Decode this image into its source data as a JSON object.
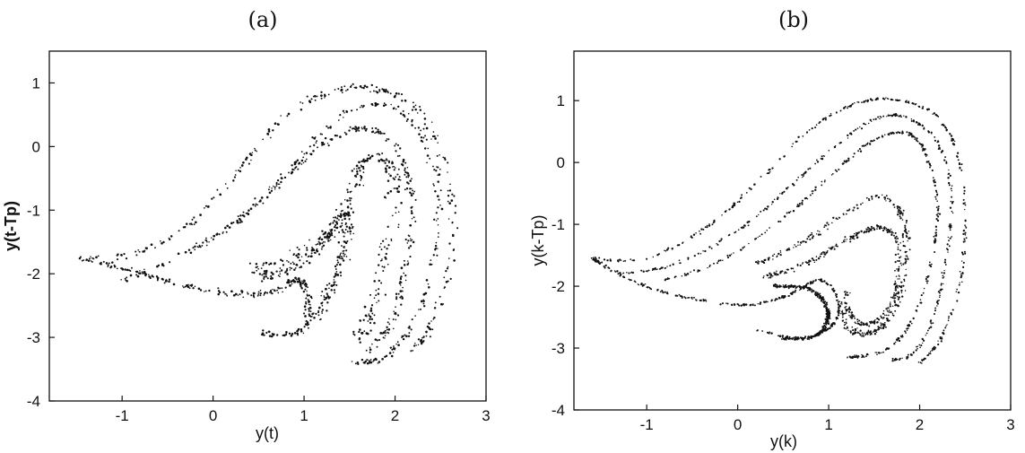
{
  "chart_data": [
    {
      "type": "scatter",
      "panel_label": "(a)",
      "xlabel": "y(t)",
      "ylabel": "y(t-Tp)",
      "xlim": [
        -1.8,
        3.0
      ],
      "ylim": [
        -4.0,
        1.5
      ],
      "xticks": [
        -1,
        0,
        1,
        2,
        3
      ],
      "yticks": [
        -4,
        -3,
        -2,
        -1,
        0,
        1
      ],
      "xtick_labels": [
        "-1",
        "0",
        "1",
        "2",
        "3"
      ],
      "ytick_labels": [
        "-4",
        "-3",
        "-2",
        "-1",
        "0",
        "1"
      ],
      "grid": false,
      "marker_color": "#111111",
      "marker_style": "dots (noisy measured attractor)",
      "strands": [
        {
          "width": 0.12,
          "points": [
            [
              -1.45,
              -1.75
            ],
            [
              -0.9,
              -1.95
            ],
            [
              -0.4,
              -2.15
            ],
            [
              0.1,
              -2.3
            ],
            [
              0.6,
              -2.3
            ],
            [
              0.95,
              -2.1
            ],
            [
              1.05,
              -2.5
            ],
            [
              1.0,
              -2.9
            ],
            [
              0.5,
              -2.95
            ]
          ]
        },
        {
          "width": 0.14,
          "points": [
            [
              -1.45,
              -1.78
            ],
            [
              -0.8,
              -1.65
            ],
            [
              -0.2,
              -1.15
            ],
            [
              0.3,
              -0.35
            ],
            [
              0.8,
              0.5
            ],
            [
              1.3,
              0.85
            ],
            [
              1.7,
              0.92
            ],
            [
              2.15,
              0.7
            ],
            [
              2.45,
              0.1
            ],
            [
              2.6,
              -0.8
            ],
            [
              2.6,
              -1.9
            ],
            [
              2.4,
              -2.8
            ],
            [
              2.2,
              -3.2
            ]
          ]
        },
        {
          "width": 0.12,
          "points": [
            [
              -1.0,
              -2.1
            ],
            [
              -0.4,
              -1.75
            ],
            [
              0.2,
              -1.25
            ],
            [
              0.7,
              -0.6
            ],
            [
              1.1,
              0.05
            ],
            [
              1.5,
              0.55
            ],
            [
              1.9,
              0.65
            ],
            [
              2.25,
              0.3
            ],
            [
              2.45,
              -0.5
            ],
            [
              2.45,
              -1.5
            ],
            [
              2.3,
              -2.5
            ],
            [
              2.05,
              -3.1
            ],
            [
              1.8,
              -3.35
            ],
            [
              1.55,
              -3.4
            ]
          ]
        },
        {
          "width": 0.12,
          "points": [
            [
              -0.2,
              -1.6
            ],
            [
              0.4,
              -1.0
            ],
            [
              1.0,
              -0.2
            ],
            [
              1.5,
              0.25
            ],
            [
              1.85,
              0.2
            ],
            [
              2.1,
              -0.3
            ],
            [
              2.2,
              -1.0
            ],
            [
              2.1,
              -2.0
            ],
            [
              1.95,
              -2.8
            ],
            [
              1.7,
              -3.25
            ]
          ]
        },
        {
          "width": 0.22,
          "points": [
            [
              0.4,
              -1.95
            ],
            [
              0.9,
              -1.7
            ],
            [
              1.35,
              -1.2
            ],
            [
              1.55,
              -0.6
            ],
            [
              1.7,
              -0.2
            ],
            [
              1.95,
              -0.3
            ],
            [
              2.0,
              -0.9
            ],
            [
              1.9,
              -1.7
            ],
            [
              1.75,
              -2.5
            ],
            [
              1.6,
              -3.0
            ]
          ]
        },
        {
          "width": 0.18,
          "points": [
            [
              0.55,
              -2.05
            ],
            [
              0.95,
              -1.85
            ],
            [
              1.25,
              -1.45
            ],
            [
              1.45,
              -1.05
            ],
            [
              1.45,
              -1.6
            ],
            [
              1.3,
              -2.2
            ],
            [
              1.15,
              -2.7
            ]
          ]
        }
      ]
    },
    {
      "type": "scatter",
      "panel_label": "(b)",
      "xlabel": "y(k)",
      "ylabel": "y(k-Tp)",
      "xlim": [
        -1.8,
        3.0
      ],
      "ylim": [
        -4.0,
        1.8
      ],
      "xticks": [
        -1,
        0,
        1,
        2,
        3
      ],
      "yticks": [
        -4,
        -3,
        -2,
        -1,
        0,
        1
      ],
      "xtick_labels": [
        "-1",
        "0",
        "1",
        "2",
        "3"
      ],
      "ytick_labels": [
        "-4",
        "-3",
        "-2",
        "-1",
        "0",
        "1"
      ],
      "grid": false,
      "marker_color": "#111111",
      "marker_style": "thin dashed strands (model attractor)",
      "strands": [
        {
          "width": 0.05,
          "points": [
            [
              -1.6,
              -1.55
            ],
            [
              -1.1,
              -1.95
            ],
            [
              -0.5,
              -2.2
            ],
            [
              0.1,
              -2.3
            ],
            [
              0.55,
              -2.15
            ],
            [
              0.9,
              -1.9
            ],
            [
              1.1,
              -2.2
            ],
            [
              1.05,
              -2.6
            ],
            [
              0.7,
              -2.85
            ],
            [
              0.2,
              -2.7
            ]
          ]
        },
        {
          "width": 0.05,
          "points": [
            [
              -1.6,
              -1.55
            ],
            [
              -1.0,
              -1.55
            ],
            [
              -0.3,
              -1.0
            ],
            [
              0.3,
              -0.2
            ],
            [
              0.8,
              0.55
            ],
            [
              1.3,
              0.95
            ],
            [
              1.7,
              1.02
            ],
            [
              2.15,
              0.8
            ],
            [
              2.4,
              0.2
            ],
            [
              2.5,
              -0.8
            ],
            [
              2.45,
              -1.9
            ],
            [
              2.25,
              -2.8
            ],
            [
              2.0,
              -3.25
            ]
          ]
        },
        {
          "width": 0.05,
          "points": [
            [
              -1.3,
              -1.8
            ],
            [
              -0.7,
              -1.65
            ],
            [
              0.0,
              -1.1
            ],
            [
              0.6,
              -0.35
            ],
            [
              1.1,
              0.3
            ],
            [
              1.55,
              0.72
            ],
            [
              1.9,
              0.7
            ],
            [
              2.2,
              0.3
            ],
            [
              2.35,
              -0.5
            ],
            [
              2.3,
              -1.5
            ],
            [
              2.15,
              -2.5
            ],
            [
              1.95,
              -3.05
            ],
            [
              1.7,
              -3.2
            ]
          ]
        },
        {
          "width": 0.05,
          "points": [
            [
              -0.8,
              -1.9
            ],
            [
              -0.2,
              -1.6
            ],
            [
              0.5,
              -0.9
            ],
            [
              1.1,
              -0.1
            ],
            [
              1.55,
              0.4
            ],
            [
              1.9,
              0.45
            ],
            [
              2.1,
              0.0
            ],
            [
              2.2,
              -0.8
            ],
            [
              2.1,
              -1.8
            ],
            [
              1.9,
              -2.6
            ],
            [
              1.6,
              -3.05
            ],
            [
              1.2,
              -3.15
            ]
          ]
        },
        {
          "width": 0.1,
          "points": [
            [
              0.2,
              -1.65
            ],
            [
              0.7,
              -1.3
            ],
            [
              1.15,
              -0.85
            ],
            [
              1.55,
              -0.55
            ],
            [
              1.8,
              -0.85
            ],
            [
              1.85,
              -1.6
            ],
            [
              1.75,
              -2.3
            ],
            [
              1.55,
              -2.7
            ],
            [
              1.3,
              -2.75
            ],
            [
              1.15,
              -2.5
            ],
            [
              1.2,
              -2.1
            ]
          ]
        },
        {
          "width": 0.1,
          "points": [
            [
              0.3,
              -1.85
            ],
            [
              0.8,
              -1.6
            ],
            [
              1.2,
              -1.25
            ],
            [
              1.55,
              -1.05
            ],
            [
              1.75,
              -1.3
            ],
            [
              1.75,
              -2.0
            ],
            [
              1.6,
              -2.5
            ],
            [
              1.35,
              -2.6
            ],
            [
              1.2,
              -2.35
            ]
          ]
        },
        {
          "width": 0.06,
          "points": [
            [
              0.4,
              -2.0
            ],
            [
              0.8,
              -2.05
            ],
            [
              1.0,
              -2.45
            ],
            [
              0.85,
              -2.8
            ],
            [
              0.5,
              -2.85
            ]
          ]
        }
      ]
    }
  ]
}
